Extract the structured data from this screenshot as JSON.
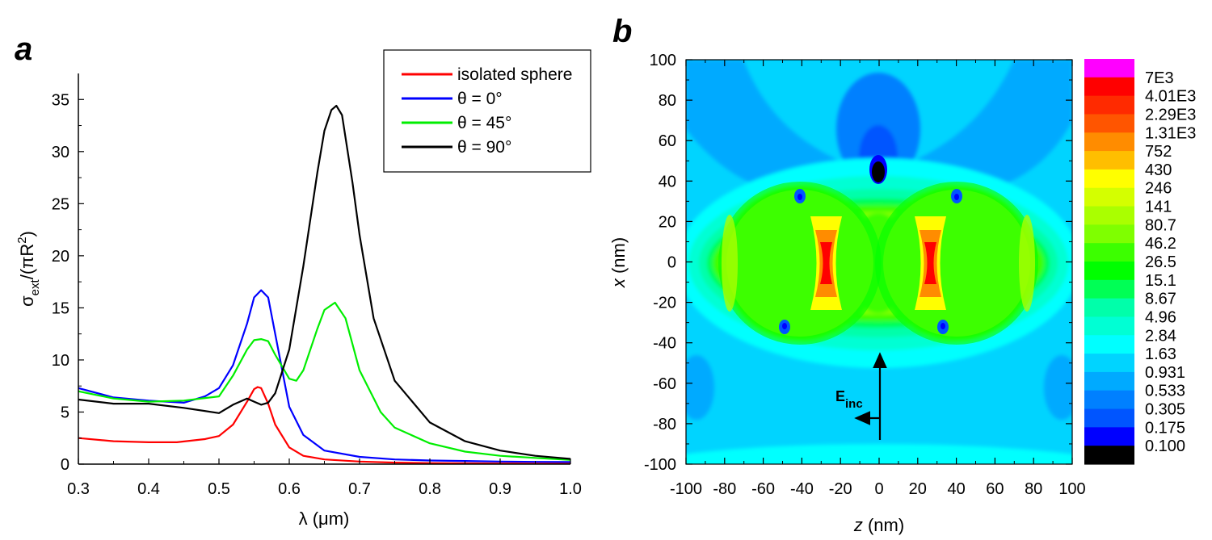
{
  "chart_data": [
    {
      "type": "line",
      "panel_label": "a",
      "xlabel": "λ (μm)",
      "ylabel": {
        "base": "σ",
        "sub": "ext",
        "rest": "/(πR",
        "sup": "2",
        "close": ")"
      },
      "xlim": [
        0.3,
        1.0
      ],
      "ylim": [
        0,
        37.5
      ],
      "xticks": [
        "0.3",
        "0.4",
        "0.5",
        "0.6",
        "0.7",
        "0.8",
        "0.9",
        "1.0"
      ],
      "yticks": [
        "0",
        "5",
        "10",
        "15",
        "20",
        "25",
        "30",
        "35"
      ],
      "legend_position": "top-right",
      "grid": false,
      "series": [
        {
          "name": "isolated sphere",
          "color": "#ff0000",
          "x": [
            0.3,
            0.35,
            0.4,
            0.44,
            0.48,
            0.5,
            0.52,
            0.54,
            0.55,
            0.555,
            0.56,
            0.57,
            0.58,
            0.6,
            0.62,
            0.65,
            0.7,
            0.75,
            0.8,
            0.85,
            0.9,
            0.95,
            1.0
          ],
          "y": [
            2.5,
            2.2,
            2.1,
            2.1,
            2.4,
            2.7,
            3.8,
            6.0,
            7.2,
            7.4,
            7.3,
            5.8,
            3.8,
            1.6,
            0.8,
            0.45,
            0.25,
            0.15,
            0.1,
            0.08,
            0.06,
            0.05,
            0.05
          ]
        },
        {
          "name": "θ = 0°",
          "color": "#0000ff",
          "x": [
            0.3,
            0.35,
            0.4,
            0.45,
            0.48,
            0.5,
            0.52,
            0.54,
            0.55,
            0.56,
            0.57,
            0.58,
            0.6,
            0.62,
            0.65,
            0.7,
            0.75,
            0.8,
            0.85,
            0.9,
            0.95,
            1.0
          ],
          "y": [
            7.3,
            6.4,
            6.1,
            5.9,
            6.5,
            7.3,
            9.5,
            13.5,
            16.0,
            16.7,
            16.0,
            12.5,
            5.5,
            2.8,
            1.3,
            0.7,
            0.45,
            0.35,
            0.3,
            0.25,
            0.22,
            0.2
          ]
        },
        {
          "name": "θ = 45°",
          "color": "#00ee00",
          "x": [
            0.3,
            0.35,
            0.4,
            0.45,
            0.5,
            0.52,
            0.54,
            0.55,
            0.56,
            0.57,
            0.58,
            0.6,
            0.61,
            0.62,
            0.64,
            0.65,
            0.665,
            0.68,
            0.7,
            0.73,
            0.75,
            0.8,
            0.85,
            0.9,
            0.95,
            1.0
          ],
          "y": [
            7.0,
            6.3,
            6.0,
            6.1,
            6.5,
            8.5,
            11.0,
            11.9,
            12.0,
            11.8,
            10.5,
            8.2,
            8.0,
            9.0,
            13.0,
            14.8,
            15.5,
            14.0,
            9.0,
            5.0,
            3.5,
            2.0,
            1.2,
            0.8,
            0.6,
            0.4
          ]
        },
        {
          "name": "θ = 90°",
          "color": "#000000",
          "x": [
            0.3,
            0.35,
            0.4,
            0.45,
            0.5,
            0.52,
            0.54,
            0.55,
            0.56,
            0.57,
            0.58,
            0.6,
            0.62,
            0.64,
            0.65,
            0.66,
            0.667,
            0.675,
            0.69,
            0.7,
            0.72,
            0.75,
            0.8,
            0.85,
            0.9,
            0.95,
            1.0
          ],
          "y": [
            6.2,
            5.8,
            5.8,
            5.4,
            4.9,
            5.7,
            6.3,
            6.0,
            5.7,
            5.9,
            6.8,
            11.0,
            19.0,
            28.0,
            32.0,
            34.0,
            34.4,
            33.5,
            27.0,
            22.0,
            14.0,
            8.0,
            4.0,
            2.2,
            1.3,
            0.8,
            0.5
          ]
        }
      ]
    },
    {
      "type": "heatmap",
      "panel_label": "b",
      "xlabel": {
        "var": "z",
        "rest": " (nm)"
      },
      "ylabel": {
        "var": "x",
        "rest": " (nm)"
      },
      "xlim": [
        -100,
        100
      ],
      "ylim": [
        -100,
        100
      ],
      "xticks": [
        "-100",
        "-80",
        "-60",
        "-40",
        "-20",
        "0",
        "20",
        "40",
        "60",
        "80",
        "100"
      ],
      "yticks": [
        "-100",
        "-80",
        "-60",
        "-40",
        "-20",
        "0",
        "20",
        "40",
        "60",
        "80",
        "100"
      ],
      "grid": false,
      "arrow_label": {
        "base": "E",
        "sub": "inc"
      },
      "colorbar": {
        "labels": [
          "7E3",
          "4.01E3",
          "2.29E3",
          "1.31E3",
          "752",
          "430",
          "246",
          "141",
          "80.7",
          "46.2",
          "26.5",
          "15.1",
          "8.67",
          "4.96",
          "2.84",
          "1.63",
          "0.931",
          "0.533",
          "0.305",
          "0.175",
          "0.100"
        ],
        "colors": [
          "#ff00ff",
          "#ff0000",
          "#ff2a00",
          "#ff5500",
          "#ff8c00",
          "#ffbe00",
          "#ffff00",
          "#d4ff00",
          "#aaff00",
          "#7fff00",
          "#3cff00",
          "#00ff00",
          "#00ff55",
          "#00ffaa",
          "#00ffd4",
          "#00ffff",
          "#00d4ff",
          "#00aaff",
          "#0080ff",
          "#0055ff",
          "#0000ff",
          "#000000"
        ]
      },
      "field_regions": [
        "background level 0.931–1.63 (light blue)",
        "two touching spheres centred at z = ±40 nm, R ≈ 40 nm, interior level ~15–46 (green)",
        "hot-spot lenses at z ≈ ±28 nm, x = 0, up to ~4E3 (red)",
        "minimum near z = 0, x = +45 nm, level < 0.100 (black)"
      ]
    }
  ]
}
